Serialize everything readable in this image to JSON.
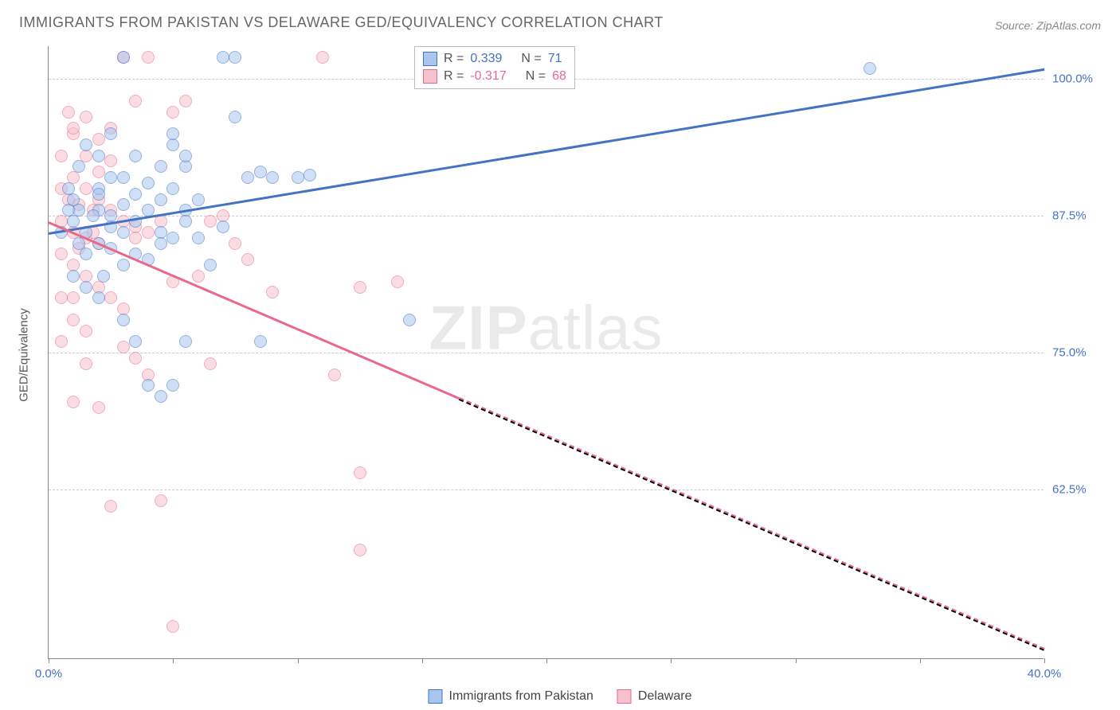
{
  "title": "IMMIGRANTS FROM PAKISTAN VS DELAWARE GED/EQUIVALENCY CORRELATION CHART",
  "source": "Source: ZipAtlas.com",
  "watermark_a": "ZIP",
  "watermark_b": "atlas",
  "y_axis_title": "GED/Equivalency",
  "chart": {
    "type": "scatter",
    "xlim": [
      0,
      40
    ],
    "ylim": [
      47,
      103
    ],
    "background_color": "#ffffff",
    "grid_color": "#cccccc",
    "axis_color": "#888888",
    "xticks": [
      0,
      5,
      10,
      15,
      20,
      25,
      30,
      35,
      40
    ],
    "xtick_labels": {
      "0": "0.0%",
      "40": "40.0%"
    },
    "yticks": [
      62.5,
      75.0,
      87.5,
      100.0
    ],
    "ytick_labels": [
      "62.5%",
      "75.0%",
      "87.5%",
      "100.0%"
    ],
    "ytick_color": "#4472c4",
    "xtick_color": "#4472c4",
    "marker_radius": 8
  },
  "series": {
    "blue": {
      "label": "Immigrants from Pakistan",
      "fill": "#a8c6f0",
      "stroke": "#4472c4",
      "r_value": "0.339",
      "n_value": "71",
      "trend": {
        "x1": 0,
        "y1": 86.0,
        "x2": 40,
        "y2": 101.0,
        "solid_to_x": 40
      },
      "points": [
        [
          33.0,
          101.0
        ],
        [
          7.5,
          102.0
        ],
        [
          14.5,
          78.0
        ],
        [
          7.5,
          96.5
        ],
        [
          3.0,
          102.0
        ],
        [
          7.0,
          102.0
        ],
        [
          1.2,
          88.0
        ],
        [
          2.0,
          90.0
        ],
        [
          3.5,
          89.5
        ],
        [
          5.0,
          94.0
        ],
        [
          4.5,
          86.0
        ],
        [
          5.5,
          88.0
        ],
        [
          6.0,
          85.5
        ],
        [
          6.5,
          83.0
        ],
        [
          7.0,
          86.5
        ],
        [
          8.0,
          91.0
        ],
        [
          8.5,
          91.5
        ],
        [
          9.0,
          91.0
        ],
        [
          10.0,
          91.0
        ],
        [
          10.5,
          91.2
        ],
        [
          2.0,
          85.0
        ],
        [
          2.5,
          87.5
        ],
        [
          1.0,
          87.0
        ],
        [
          1.5,
          86.0
        ],
        [
          3.0,
          86.0
        ],
        [
          3.5,
          84.0
        ],
        [
          4.0,
          83.5
        ],
        [
          4.5,
          85.0
        ],
        [
          2.0,
          93.0
        ],
        [
          2.5,
          95.0
        ],
        [
          1.0,
          82.0
        ],
        [
          1.5,
          81.0
        ],
        [
          2.0,
          80.0
        ],
        [
          3.0,
          78.0
        ],
        [
          3.5,
          76.0
        ],
        [
          4.0,
          72.0
        ],
        [
          4.5,
          71.0
        ],
        [
          5.0,
          72.0
        ],
        [
          5.5,
          76.0
        ],
        [
          0.8,
          90.0
        ],
        [
          1.2,
          92.0
        ],
        [
          1.5,
          94.0
        ],
        [
          2.0,
          88.0
        ],
        [
          2.5,
          86.5
        ],
        [
          3.0,
          88.5
        ],
        [
          3.5,
          87.0
        ],
        [
          4.0,
          88.0
        ],
        [
          4.5,
          89.0
        ],
        [
          5.0,
          85.5
        ],
        [
          5.5,
          87.0
        ],
        [
          2.5,
          84.5
        ],
        [
          3.0,
          83.0
        ],
        [
          5.0,
          90.0
        ],
        [
          5.5,
          92.0
        ],
        [
          6.0,
          89.0
        ],
        [
          0.5,
          86.0
        ],
        [
          0.8,
          88.0
        ],
        [
          1.0,
          89.0
        ],
        [
          1.2,
          85.0
        ],
        [
          8.5,
          76.0
        ],
        [
          5.0,
          95.0
        ],
        [
          5.5,
          93.0
        ],
        [
          3.0,
          91.0
        ],
        [
          3.5,
          93.0
        ],
        [
          4.0,
          90.5
        ],
        [
          4.5,
          92.0
        ],
        [
          2.0,
          89.5
        ],
        [
          2.5,
          91.0
        ],
        [
          1.8,
          87.5
        ],
        [
          1.5,
          84.0
        ],
        [
          2.2,
          82.0
        ]
      ]
    },
    "pink": {
      "label": "Delaware",
      "fill": "#f5c2cd",
      "stroke": "#e86a8a",
      "r_value": "-0.317",
      "n_value": "68",
      "trend": {
        "x1": 0,
        "y1": 87.0,
        "x2": 40,
        "y2": 48.0,
        "solid_to_x": 16.5
      },
      "points": [
        [
          12.5,
          64.0
        ],
        [
          12.5,
          57.0
        ],
        [
          5.0,
          50.0
        ],
        [
          2.5,
          61.0
        ],
        [
          4.5,
          61.5
        ],
        [
          1.0,
          70.5
        ],
        [
          2.0,
          70.0
        ],
        [
          1.5,
          74.0
        ],
        [
          6.5,
          74.0
        ],
        [
          11.5,
          73.0
        ],
        [
          3.0,
          75.5
        ],
        [
          3.5,
          74.5
        ],
        [
          4.0,
          73.0
        ],
        [
          12.5,
          81.0
        ],
        [
          9.0,
          80.5
        ],
        [
          14.0,
          81.5
        ],
        [
          1.0,
          95.0
        ],
        [
          0.8,
          97.0
        ],
        [
          3.0,
          102.0
        ],
        [
          4.0,
          102.0
        ],
        [
          3.5,
          98.0
        ],
        [
          11.0,
          102.0
        ],
        [
          1.5,
          93.0
        ],
        [
          2.0,
          94.5
        ],
        [
          2.5,
          95.5
        ],
        [
          0.5,
          93.0
        ],
        [
          1.0,
          91.0
        ],
        [
          1.5,
          90.0
        ],
        [
          2.0,
          89.0
        ],
        [
          2.5,
          88.0
        ],
        [
          3.0,
          87.0
        ],
        [
          3.5,
          86.5
        ],
        [
          0.5,
          87.0
        ],
        [
          1.0,
          86.0
        ],
        [
          1.5,
          85.5
        ],
        [
          2.0,
          85.0
        ],
        [
          0.5,
          90.0
        ],
        [
          0.8,
          89.0
        ],
        [
          1.2,
          88.5
        ],
        [
          0.5,
          84.0
        ],
        [
          1.0,
          83.0
        ],
        [
          1.5,
          82.0
        ],
        [
          2.0,
          81.0
        ],
        [
          2.5,
          80.0
        ],
        [
          3.0,
          79.0
        ],
        [
          1.0,
          78.0
        ],
        [
          1.5,
          77.0
        ],
        [
          0.5,
          76.0
        ],
        [
          1.0,
          95.5
        ],
        [
          1.5,
          96.5
        ],
        [
          6.5,
          87.0
        ],
        [
          7.0,
          87.5
        ],
        [
          7.5,
          85.0
        ],
        [
          8.0,
          83.5
        ],
        [
          5.0,
          81.5
        ],
        [
          6.0,
          82.0
        ],
        [
          1.0,
          80.0
        ],
        [
          0.5,
          80.0
        ],
        [
          3.5,
          85.5
        ],
        [
          4.0,
          86.0
        ],
        [
          4.5,
          87.0
        ],
        [
          2.0,
          91.5
        ],
        [
          2.5,
          92.5
        ],
        [
          1.2,
          84.5
        ],
        [
          1.8,
          86.0
        ],
        [
          5.0,
          97.0
        ],
        [
          5.5,
          98.0
        ],
        [
          1.8,
          88.0
        ]
      ]
    }
  },
  "legend": {
    "r_label": "R =",
    "n_label": "N ="
  }
}
